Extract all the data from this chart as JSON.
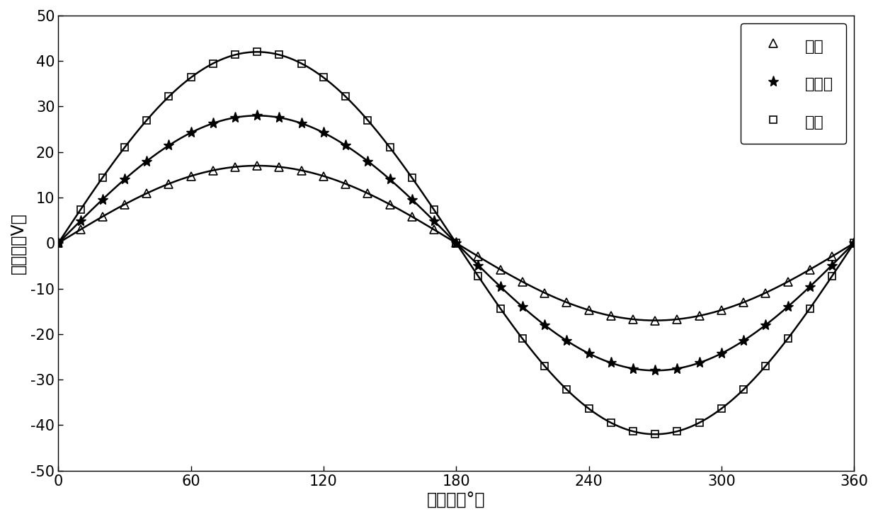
{
  "title": "",
  "xlabel_zh": "电角度（°）",
  "ylabel_zh": "反电势（V）",
  "xlim": [
    0,
    360
  ],
  "ylim": [
    -50,
    50
  ],
  "xticks": [
    0,
    60,
    120,
    180,
    240,
    300,
    360
  ],
  "yticks": [
    -50,
    -40,
    -30,
    -20,
    -10,
    0,
    10,
    20,
    30,
    40,
    50
  ],
  "series": [
    {
      "label": "去磁",
      "amplitude": 17.0,
      "marker": "^",
      "marker_interval": 10
    },
    {
      "label": "纯永磁",
      "amplitude": 28.0,
      "marker": "*",
      "marker_interval": 10
    },
    {
      "label": "增磁",
      "amplitude": 42.0,
      "marker": "s",
      "marker_interval": 10
    }
  ],
  "legend_loc": "upper right",
  "background_color": "#ffffff",
  "line_color": "#000000",
  "linewidth": 1.8,
  "markersize_triangle": 8,
  "markersize_star": 11,
  "markersize_square": 7,
  "xlabel_fontsize": 17,
  "ylabel_fontsize": 17,
  "tick_fontsize": 15,
  "legend_fontsize": 16
}
